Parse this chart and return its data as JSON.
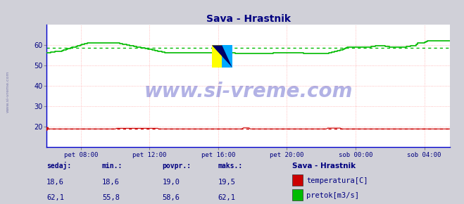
{
  "title": "Sava - Hrastnik",
  "title_color": "#000080",
  "bg_color": "#d0d0d8",
  "plot_bg_color": "#ffffff",
  "grid_color": "#ffaaaa",
  "xlim": [
    6,
    29.5
  ],
  "ylim": [
    10,
    70
  ],
  "yticks": [
    20,
    30,
    40,
    50,
    60
  ],
  "xtick_labels": [
    "pet 08:00",
    "pet 12:00",
    "pet 16:00",
    "pet 20:00",
    "sob 00:00",
    "sob 04:00"
  ],
  "xtick_positions": [
    8,
    12,
    16,
    20,
    24,
    28
  ],
  "temp_color": "#cc0000",
  "flow_color": "#00bb00",
  "temp_avg": 19.0,
  "flow_avg": 58.6,
  "watermark": "www.si-vreme.com",
  "watermark_color": "#0000aa",
  "watermark_alpha": 0.3,
  "legend_title": "Sava - Hrastnik",
  "legend_title_color": "#000080",
  "legend_items": [
    "temperatura[C]",
    "pretok[m3/s]"
  ],
  "legend_colors": [
    "#cc0000",
    "#00bb00"
  ],
  "stats_labels": [
    "sedaj:",
    "min.:",
    "povpr.:",
    "maks.:"
  ],
  "stats_color": "#000080",
  "temp_stats": [
    "18,6",
    "18,6",
    "19,0",
    "19,5"
  ],
  "flow_stats": [
    "62,1",
    "55,8",
    "58,6",
    "62,1"
  ],
  "sidebar_text": "www.si-vreme.com",
  "sidebar_color": "#7777aa"
}
